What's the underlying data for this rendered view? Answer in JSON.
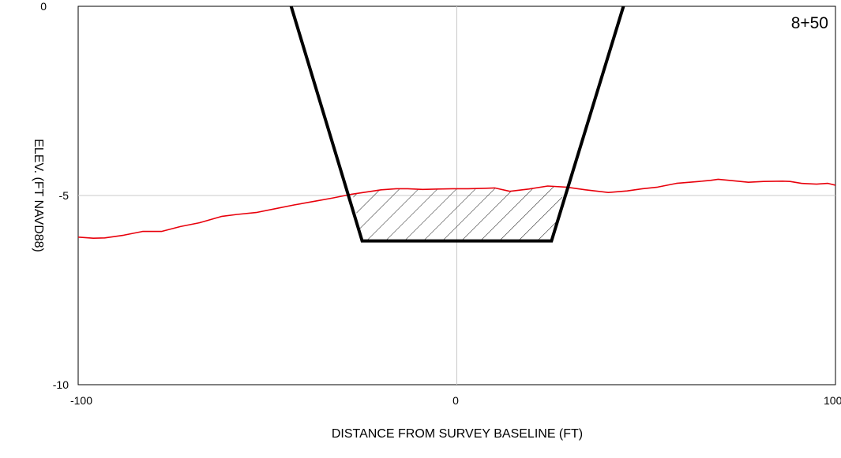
{
  "chart_data": {
    "type": "line",
    "title": "",
    "station_label": "8+50",
    "xlabel": "DISTANCE FROM SURVEY BASELINE (FT)",
    "ylabel": "ELEV. (FT NAVD88)",
    "xlim": [
      -100,
      100
    ],
    "ylim": [
      -10,
      0
    ],
    "x_ticks": [
      -100,
      0,
      100
    ],
    "x_tick_labels": [
      "-100",
      "0",
      "100"
    ],
    "y_ticks": [
      0,
      -5,
      -10
    ],
    "y_tick_labels": [
      "0",
      "-5",
      "-10"
    ],
    "grid": "center lines only",
    "legend": "none",
    "colors": {
      "ground": "#e8000b",
      "template": "#000000",
      "grid": "#c8c8c8"
    },
    "series": [
      {
        "key": "ground",
        "x": [
          -100,
          -96,
          -93,
          -88,
          -83,
          -78,
          -73,
          -68,
          -62,
          -58,
          -53,
          -48,
          -43,
          -38,
          -33,
          -28,
          -24,
          -20,
          -16,
          -13,
          -9,
          -5,
          -1,
          3,
          7,
          10,
          14,
          19,
          24,
          29,
          34,
          40,
          45,
          49,
          53,
          58,
          64,
          67,
          69,
          72,
          77,
          81,
          86,
          88,
          91,
          95,
          98,
          100
        ],
        "y": [
          -6.1,
          -6.13,
          -6.12,
          -6.05,
          -5.95,
          -5.95,
          -5.82,
          -5.72,
          -5.55,
          -5.5,
          -5.45,
          -5.35,
          -5.25,
          -5.16,
          -5.07,
          -4.97,
          -4.91,
          -4.85,
          -4.82,
          -4.82,
          -4.84,
          -4.83,
          -4.82,
          -4.82,
          -4.81,
          -4.8,
          -4.89,
          -4.83,
          -4.75,
          -4.78,
          -4.85,
          -4.92,
          -4.88,
          -4.82,
          -4.78,
          -4.68,
          -4.63,
          -4.6,
          -4.57,
          -4.6,
          -4.65,
          -4.63,
          -4.62,
          -4.63,
          -4.68,
          -4.7,
          -4.68,
          -4.73
        ]
      },
      {
        "key": "template",
        "x": [
          -43.75,
          -25,
          25,
          44
        ],
        "y": [
          0,
          -6.2,
          -6.2,
          0
        ]
      }
    ],
    "fill": {
      "pattern": "hatched",
      "between": [
        "ground",
        "template"
      ],
      "x_range": [
        -27.5,
        28.5
      ]
    }
  }
}
